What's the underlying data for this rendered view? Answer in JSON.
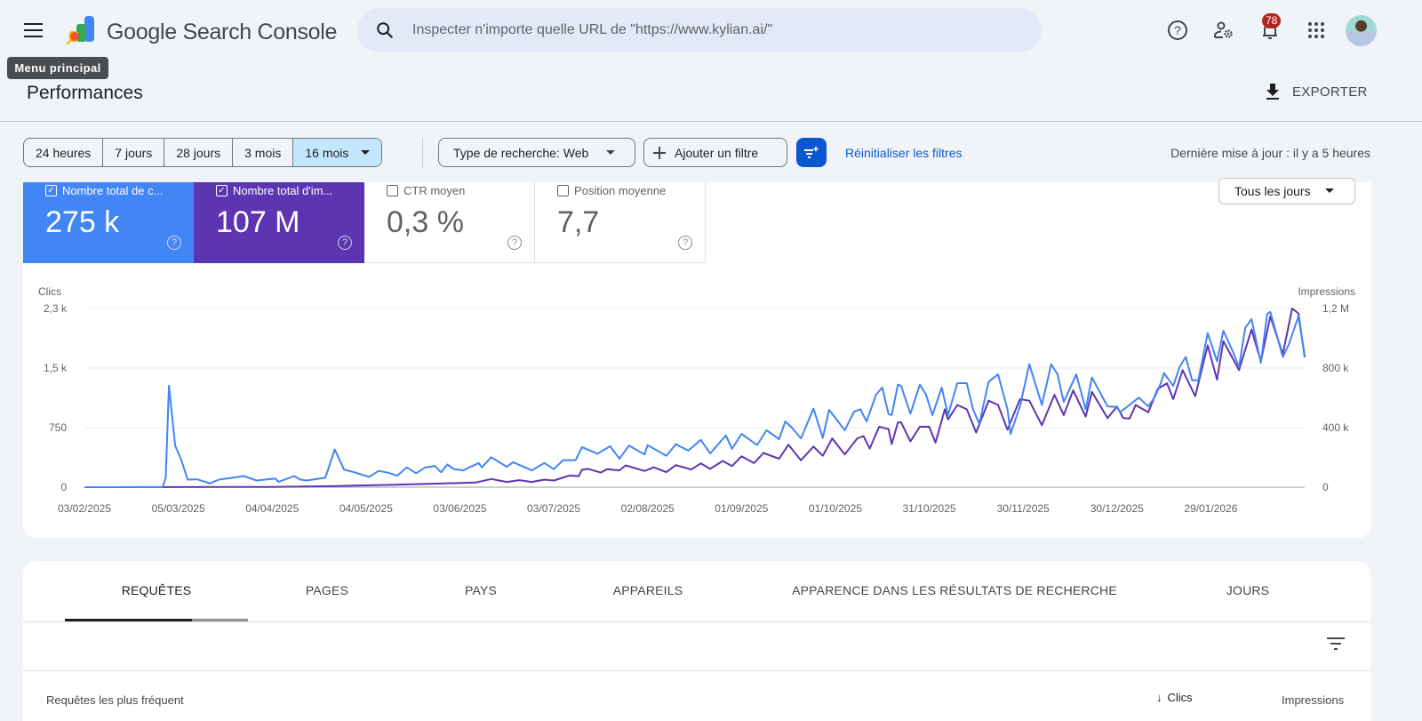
{
  "header": {
    "app_name": "Google Search Console",
    "search_placeholder": "Inspecter n'importe quelle URL de \"https://www.kylian.ai/\"",
    "tooltip": "Menu principal",
    "notification_count": "78",
    "icons": [
      "menu-icon",
      "search-icon",
      "help-icon",
      "admin-settings-icon",
      "bell-icon",
      "apps-icon"
    ]
  },
  "page": {
    "title": "Performances",
    "export_label": "EXPORTER"
  },
  "filters": {
    "ranges": [
      "24 heures",
      "7 jours",
      "28 jours",
      "3 mois",
      "16 mois"
    ],
    "selected_range": "16 mois",
    "search_type": "Type de recherche: Web",
    "add_filter": "Ajouter un filtre",
    "reset": "Réinitialiser les filtres",
    "last_update": "Dernière mise à jour : il y a 5 heures"
  },
  "metrics": [
    {
      "label": "Nombre total de c...",
      "value": "275 k",
      "checked": true,
      "color": "#4285f4"
    },
    {
      "label": "Nombre total d'im...",
      "value": "107 M",
      "checked": true,
      "color": "#5e35b1"
    },
    {
      "label": "CTR moyen",
      "value": "0,3 %",
      "checked": false
    },
    {
      "label": "Position moyenne",
      "value": "7,7",
      "checked": false
    }
  ],
  "granularity": "Tous les jours",
  "chart_data": {
    "type": "line",
    "ylabel_left": "Clics",
    "ylabel_right": "Impressions",
    "y_left_ticks": [
      "0",
      "750",
      "1,5 k",
      "2,3 k"
    ],
    "y_left_range": [
      0,
      2250
    ],
    "y_right_ticks": [
      "0",
      "400 k",
      "800 k",
      "1,2 M"
    ],
    "y_right_range": [
      0,
      1200000
    ],
    "x_range": [
      "2025-02-03",
      "2026-02-28"
    ],
    "x_ticks": [
      {
        "date": "2025-02-03",
        "label": "03/02/2025"
      },
      {
        "date": "2025-03-05",
        "label": "05/03/2025"
      },
      {
        "date": "2025-04-04",
        "label": "04/04/2025"
      },
      {
        "date": "2025-05-04",
        "label": "04/05/2025"
      },
      {
        "date": "2025-06-03",
        "label": "03/06/2025"
      },
      {
        "date": "2025-07-03",
        "label": "03/07/2025"
      },
      {
        "date": "2025-08-02",
        "label": "02/08/2025"
      },
      {
        "date": "2025-09-01",
        "label": "01/09/2025"
      },
      {
        "date": "2025-10-01",
        "label": "01/10/2025"
      },
      {
        "date": "2025-10-31",
        "label": "31/10/2025"
      },
      {
        "date": "2025-11-30",
        "label": "30/11/2025"
      },
      {
        "date": "2025-12-30",
        "label": "30/12/2025"
      },
      {
        "date": "2026-01-29",
        "label": "29/01/2026"
      }
    ],
    "grid": true,
    "series": [
      {
        "name": "Clics",
        "axis": "left",
        "color": "#4285f4",
        "points": [
          [
            "2025-02-03",
            0
          ],
          [
            "2025-02-28",
            0
          ],
          [
            "2025-03-01",
            120
          ],
          [
            "2025-03-02",
            1280
          ],
          [
            "2025-03-04",
            523
          ],
          [
            "2025-03-06",
            340
          ],
          [
            "2025-03-08",
            95
          ],
          [
            "2025-03-11",
            100
          ],
          [
            "2025-03-15",
            48
          ],
          [
            "2025-03-18",
            95
          ],
          [
            "2025-03-22",
            117
          ],
          [
            "2025-03-26",
            140
          ],
          [
            "2025-03-30",
            84
          ],
          [
            "2025-04-05",
            110
          ],
          [
            "2025-04-06",
            66
          ],
          [
            "2025-04-11",
            140
          ],
          [
            "2025-04-13",
            95
          ],
          [
            "2025-04-15",
            84
          ],
          [
            "2025-04-21",
            120
          ],
          [
            "2025-04-24",
            475
          ],
          [
            "2025-04-27",
            220
          ],
          [
            "2025-04-30",
            190
          ],
          [
            "2025-05-05",
            130
          ],
          [
            "2025-05-08",
            205
          ],
          [
            "2025-05-11",
            183
          ],
          [
            "2025-05-14",
            146
          ],
          [
            "2025-05-17",
            250
          ],
          [
            "2025-05-20",
            176
          ],
          [
            "2025-05-23",
            250
          ],
          [
            "2025-05-26",
            267
          ],
          [
            "2025-05-28",
            187
          ],
          [
            "2025-05-30",
            285
          ],
          [
            "2025-06-01",
            230
          ],
          [
            "2025-06-04",
            212
          ],
          [
            "2025-06-09",
            304
          ],
          [
            "2025-06-10",
            250
          ],
          [
            "2025-06-13",
            377
          ],
          [
            "2025-06-18",
            256
          ],
          [
            "2025-06-20",
            315
          ],
          [
            "2025-06-26",
            212
          ],
          [
            "2025-06-30",
            304
          ],
          [
            "2025-07-03",
            227
          ],
          [
            "2025-07-06",
            340
          ],
          [
            "2025-07-10",
            340
          ],
          [
            "2025-07-12",
            505
          ],
          [
            "2025-07-17",
            421
          ],
          [
            "2025-07-21",
            516
          ],
          [
            "2025-07-24",
            359
          ],
          [
            "2025-07-27",
            523
          ],
          [
            "2025-08-01",
            413
          ],
          [
            "2025-08-02",
            530
          ],
          [
            "2025-08-08",
            395
          ],
          [
            "2025-08-11",
            541
          ],
          [
            "2025-08-15",
            461
          ],
          [
            "2025-08-19",
            597
          ],
          [
            "2025-08-22",
            424
          ],
          [
            "2025-08-27",
            651
          ],
          [
            "2025-08-29",
            483
          ],
          [
            "2025-09-01",
            670
          ],
          [
            "2025-09-06",
            531
          ],
          [
            "2025-09-09",
            717
          ],
          [
            "2025-09-13",
            604
          ],
          [
            "2025-09-15",
            827
          ],
          [
            "2025-09-17",
            754
          ],
          [
            "2025-09-20",
            615
          ],
          [
            "2025-09-24",
            988
          ],
          [
            "2025-09-27",
            622
          ],
          [
            "2025-09-29",
            974
          ],
          [
            "2025-10-04",
            717
          ],
          [
            "2025-10-07",
            952
          ],
          [
            "2025-10-09",
            981
          ],
          [
            "2025-10-11",
            827
          ],
          [
            "2025-10-14",
            1164
          ],
          [
            "2025-10-16",
            1255
          ],
          [
            "2025-10-18",
            919
          ],
          [
            "2025-10-19",
            908
          ],
          [
            "2025-10-21",
            1292
          ],
          [
            "2025-10-22",
            1274
          ],
          [
            "2025-10-25",
            926
          ],
          [
            "2025-10-28",
            1292
          ],
          [
            "2025-10-30",
            1164
          ],
          [
            "2025-11-01",
            908
          ],
          [
            "2025-11-04",
            1255
          ],
          [
            "2025-11-06",
            908
          ],
          [
            "2025-11-09",
            1310
          ],
          [
            "2025-11-12",
            1310
          ],
          [
            "2025-11-14",
            981
          ],
          [
            "2025-11-16",
            798
          ],
          [
            "2025-11-19",
            1329
          ],
          [
            "2025-11-22",
            1420
          ],
          [
            "2025-11-25",
            981
          ],
          [
            "2025-11-26",
            670
          ],
          [
            "2025-11-29",
            1017
          ],
          [
            "2025-12-02",
            1548
          ],
          [
            "2025-12-06",
            1036
          ],
          [
            "2025-12-09",
            1548
          ],
          [
            "2025-12-11",
            1420
          ],
          [
            "2025-12-13",
            1072
          ],
          [
            "2025-12-17",
            1420
          ],
          [
            "2025-12-20",
            981
          ],
          [
            "2025-12-22",
            1383
          ],
          [
            "2025-12-27",
            1017
          ],
          [
            "2025-12-30",
            1010
          ],
          [
            "2025-12-31",
            944
          ],
          [
            "2026-01-06",
            1127
          ],
          [
            "2026-01-09",
            1017
          ],
          [
            "2026-01-11",
            1127
          ],
          [
            "2026-01-13",
            1310
          ],
          [
            "2026-01-14",
            1438
          ],
          [
            "2026-01-17",
            1274
          ],
          [
            "2026-01-19",
            1512
          ],
          [
            "2026-01-21",
            1640
          ],
          [
            "2026-01-23",
            1347
          ],
          [
            "2026-01-25",
            1347
          ],
          [
            "2026-01-28",
            1940
          ],
          [
            "2026-01-31",
            1585
          ],
          [
            "2026-02-02",
            1969
          ],
          [
            "2026-02-05",
            1713
          ],
          [
            "2026-02-07",
            1512
          ],
          [
            "2026-02-09",
            2006
          ],
          [
            "2026-02-11",
            2115
          ],
          [
            "2026-02-14",
            1566
          ],
          [
            "2026-02-16",
            2181
          ],
          [
            "2026-02-17",
            2207
          ],
          [
            "2026-02-21",
            1640
          ],
          [
            "2026-02-23",
            1804
          ],
          [
            "2026-02-26",
            2152
          ],
          [
            "2026-02-28",
            1658
          ]
        ]
      },
      {
        "name": "Impressions",
        "axis": "right",
        "color": "#5e35b1",
        "points": [
          [
            "2025-02-03",
            0
          ],
          [
            "2025-04-04",
            2000
          ],
          [
            "2025-04-24",
            8000
          ],
          [
            "2025-05-13",
            16000
          ],
          [
            "2025-05-29",
            25000
          ],
          [
            "2025-06-08",
            31000
          ],
          [
            "2025-06-13",
            55000
          ],
          [
            "2025-06-18",
            35000
          ],
          [
            "2025-06-22",
            47000
          ],
          [
            "2025-06-26",
            35000
          ],
          [
            "2025-06-30",
            51000
          ],
          [
            "2025-07-03",
            45000
          ],
          [
            "2025-07-08",
            78000
          ],
          [
            "2025-07-11",
            74000
          ],
          [
            "2025-07-12",
            117000
          ],
          [
            "2025-07-14",
            123000
          ],
          [
            "2025-07-18",
            98000
          ],
          [
            "2025-07-20",
            121000
          ],
          [
            "2025-07-24",
            113000
          ],
          [
            "2025-07-26",
            146000
          ],
          [
            "2025-08-01",
            109000
          ],
          [
            "2025-08-04",
            133000
          ],
          [
            "2025-08-08",
            101000
          ],
          [
            "2025-08-11",
            148000
          ],
          [
            "2025-08-16",
            119000
          ],
          [
            "2025-08-19",
            160000
          ],
          [
            "2025-08-22",
            123000
          ],
          [
            "2025-08-26",
            176000
          ],
          [
            "2025-08-29",
            142000
          ],
          [
            "2025-09-01",
            207000
          ],
          [
            "2025-09-05",
            162000
          ],
          [
            "2025-09-08",
            230000
          ],
          [
            "2025-09-13",
            191000
          ],
          [
            "2025-09-16",
            285000
          ],
          [
            "2025-09-20",
            181000
          ],
          [
            "2025-09-24",
            273000
          ],
          [
            "2025-09-27",
            211000
          ],
          [
            "2025-09-30",
            328000
          ],
          [
            "2025-10-04",
            220000
          ],
          [
            "2025-10-08",
            328000
          ],
          [
            "2025-10-10",
            343000
          ],
          [
            "2025-10-12",
            259000
          ],
          [
            "2025-10-15",
            406000
          ],
          [
            "2025-10-18",
            390000
          ],
          [
            "2025-10-19",
            289000
          ],
          [
            "2025-10-21",
            435000
          ],
          [
            "2025-10-22",
            435000
          ],
          [
            "2025-10-25",
            308000
          ],
          [
            "2025-10-28",
            406000
          ],
          [
            "2025-10-31",
            406000
          ],
          [
            "2025-11-02",
            299000
          ],
          [
            "2025-11-05",
            523000
          ],
          [
            "2025-11-06",
            455000
          ],
          [
            "2025-11-09",
            552000
          ],
          [
            "2025-11-12",
            523000
          ],
          [
            "2025-11-15",
            367000
          ],
          [
            "2025-11-19",
            581000
          ],
          [
            "2025-11-22",
            552000
          ],
          [
            "2025-11-25",
            386000
          ],
          [
            "2025-11-29",
            591000
          ],
          [
            "2025-12-02",
            581000
          ],
          [
            "2025-12-06",
            416000
          ],
          [
            "2025-12-10",
            620000
          ],
          [
            "2025-12-13",
            484000
          ],
          [
            "2025-12-16",
            650000
          ],
          [
            "2025-12-20",
            474000
          ],
          [
            "2025-12-22",
            640000
          ],
          [
            "2025-12-27",
            464000
          ],
          [
            "2025-12-30",
            542000
          ],
          [
            "2026-01-01",
            464000
          ],
          [
            "2026-01-03",
            460000
          ],
          [
            "2026-01-05",
            552000
          ],
          [
            "2026-01-09",
            503000
          ],
          [
            "2026-01-12",
            659000
          ],
          [
            "2026-01-15",
            698000
          ],
          [
            "2026-01-17",
            591000
          ],
          [
            "2026-01-20",
            786000
          ],
          [
            "2026-01-24",
            611000
          ],
          [
            "2026-01-28",
            952000
          ],
          [
            "2026-01-31",
            722000
          ],
          [
            "2026-02-02",
            981000
          ],
          [
            "2026-02-07",
            786000
          ],
          [
            "2026-02-11",
            1059000
          ],
          [
            "2026-02-14",
            845000
          ],
          [
            "2026-02-17",
            1147000
          ],
          [
            "2026-02-21",
            894000
          ],
          [
            "2026-02-24",
            1200000
          ],
          [
            "2026-02-26",
            1167000
          ],
          [
            "2026-02-28",
            874000
          ]
        ]
      }
    ]
  },
  "table": {
    "tabs": [
      "REQUÊTES",
      "PAGES",
      "PAYS",
      "APPAREILS",
      "APPARENCE DANS LES RÉSULTATS DE RECHERCHE",
      "JOURS"
    ],
    "active_tab": "REQUÊTES",
    "columns": {
      "query": "Requêtes les plus fréquent",
      "clicks": "Clics",
      "impressions": "Impressions"
    }
  }
}
